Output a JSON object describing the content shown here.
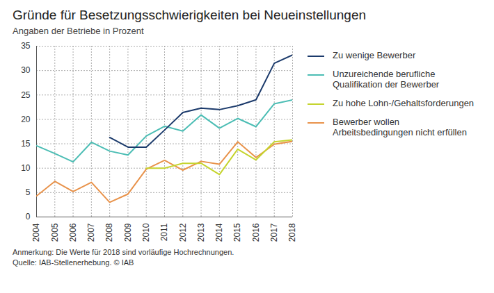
{
  "chart_data": {
    "type": "line",
    "title": "Gründe für Besetzungsschwierigkeiten bei Neueinstellungen",
    "subtitle": "Angaben der Betriebe in Prozent",
    "x": [
      2004,
      2005,
      2006,
      2007,
      2008,
      2009,
      2010,
      2011,
      2012,
      2013,
      2014,
      2015,
      2016,
      2017,
      2018
    ],
    "series": [
      {
        "name": "Zu wenige Bewerber",
        "color": "#1b3a6b",
        "values": [
          null,
          null,
          null,
          null,
          16.3,
          14.3,
          14.3,
          17.8,
          21.4,
          22.3,
          22.0,
          22.8,
          24.0,
          31.5,
          33.2
        ]
      },
      {
        "name": "Unzureichende berufliche Qualifikation der Bewerber",
        "color": "#4bbdb4",
        "values": [
          14.6,
          13.0,
          11.3,
          15.3,
          13.5,
          12.7,
          16.6,
          18.6,
          17.6,
          20.9,
          18.2,
          20.2,
          18.5,
          23.2,
          24.0
        ]
      },
      {
        "name": "Zu hohe Lohn-/Gehaltsforderungen",
        "color": "#c5d42e",
        "values": [
          null,
          null,
          null,
          null,
          null,
          null,
          10.0,
          10.0,
          11.0,
          11.0,
          8.7,
          13.9,
          11.7,
          15.4,
          15.8
        ]
      },
      {
        "name": "Bewerber wollen Arbeitsbedingungen nicht erfüllen",
        "color": "#e8924a",
        "values": [
          4.3,
          7.3,
          5.2,
          7.1,
          3.0,
          4.7,
          9.8,
          11.6,
          9.6,
          11.4,
          10.8,
          15.4,
          12.2,
          14.9,
          15.5
        ]
      }
    ],
    "xlim": [
      2004,
      2018
    ],
    "xticks": [
      2004,
      2005,
      2006,
      2007,
      2008,
      2009,
      2010,
      2011,
      2012,
      2013,
      2014,
      2015,
      2016,
      2017,
      2018
    ],
    "ylim": [
      0,
      35
    ],
    "yticks": [
      0,
      5,
      10,
      15,
      20,
      25,
      30,
      35
    ],
    "grid": true,
    "legend": "right",
    "annotations": [
      "Anmerkung: Die Werte für 2018 sind vorläufige Hochrechnungen.",
      "Quelle: IAB-Stellenerhebung. © IAB"
    ]
  }
}
